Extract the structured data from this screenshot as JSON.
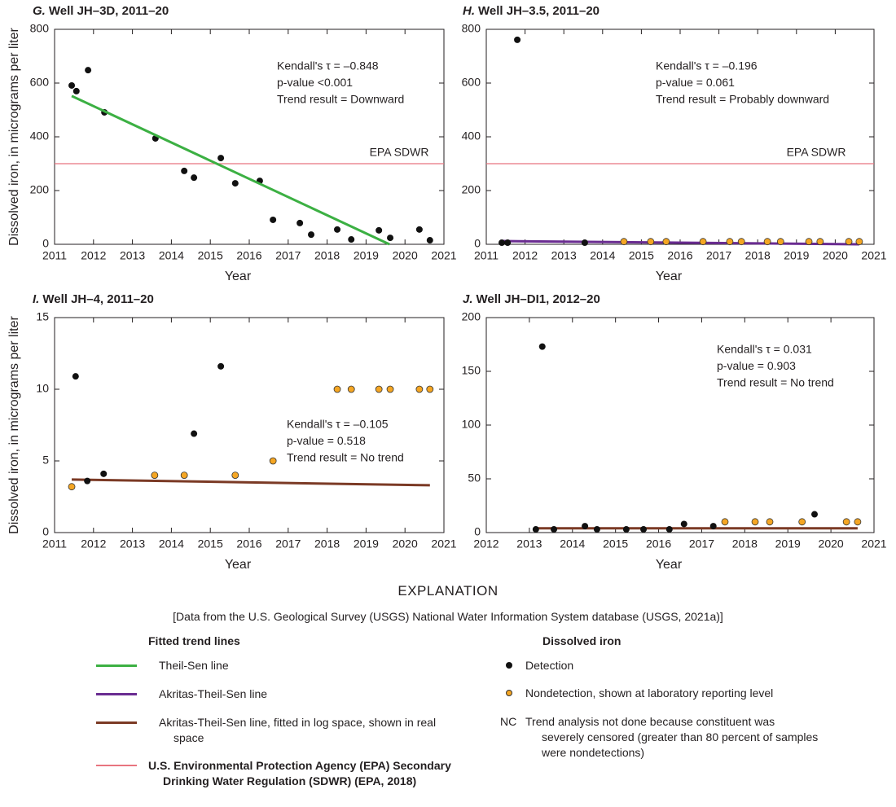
{
  "chart_data": [
    {
      "type": "scatter",
      "panel": "G.",
      "title": "Well JH–3D, 2011–20",
      "annotation": [
        "Kendall's τ = –0.848",
        "p-value <0.001",
        "Trend result = Downward"
      ],
      "ref_line": {
        "value": 300,
        "label": "EPA SDWR",
        "color": "#e8747f"
      },
      "xlabel": "Year",
      "ylabel": "Dissolved iron, in micrograms per liter",
      "xlim": [
        2011,
        2021
      ],
      "xticks": [
        2011,
        2012,
        2013,
        2014,
        2015,
        2016,
        2017,
        2018,
        2019,
        2020,
        2021
      ],
      "ylim": [
        0,
        800
      ],
      "yticks": [
        0,
        200,
        400,
        600,
        800
      ],
      "series": [
        {
          "marker": "dot",
          "color": "#111111",
          "x": [
            2011.44,
            2011.56,
            2011.86,
            2012.28,
            2013.59,
            2014.33,
            2014.58,
            2015.27,
            2015.64,
            2016.27,
            2016.61,
            2017.3,
            2017.59,
            2018.26,
            2018.62,
            2019.33,
            2019.62,
            2020.37,
            2020.64
          ],
          "values": [
            591,
            570,
            648,
            491,
            394,
            273,
            248,
            321,
            227,
            236,
            91,
            79,
            36,
            55,
            18,
            52,
            24,
            55,
            15
          ]
        },
        {
          "marker": "line",
          "color": "#3cb043",
          "x": [
            2011.44,
            2019.6
          ],
          "values": [
            552,
            0
          ]
        }
      ]
    },
    {
      "type": "scatter",
      "panel": "H.",
      "title": "Well JH–3.5, 2011–20",
      "annotation": [
        "Kendall's τ = –0.196",
        "p-value = 0.061",
        "Trend result = Probably downward"
      ],
      "ref_line": {
        "value": 300,
        "label": "EPA SDWR",
        "color": "#e8747f"
      },
      "xlabel": "Year",
      "xlim": [
        2011,
        2021
      ],
      "xticks": [
        2011,
        2012,
        2013,
        2014,
        2015,
        2016,
        2017,
        2018,
        2019,
        2020,
        2021
      ],
      "ylim": [
        0,
        800
      ],
      "yticks": [
        0,
        200,
        400,
        600,
        800
      ],
      "series": [
        {
          "marker": "line",
          "color": "#6a2c91",
          "x": [
            2011.4,
            2020.62
          ],
          "values": [
            12,
            0
          ]
        },
        {
          "marker": "dot",
          "color": "#111111",
          "x": [
            2011.4,
            2011.55,
            2011.8,
            2013.54
          ],
          "values": [
            6,
            6,
            761,
            6
          ]
        },
        {
          "marker": "open",
          "color": "#f5a623",
          "x": [
            2014.55,
            2015.24,
            2015.64,
            2016.59,
            2017.28,
            2017.58,
            2018.25,
            2018.59,
            2019.32,
            2019.61,
            2020.35,
            2020.62
          ],
          "values": [
            10,
            10,
            10,
            10,
            10,
            10,
            10,
            10,
            10,
            10,
            10,
            10
          ]
        }
      ]
    },
    {
      "type": "scatter",
      "panel": "I.",
      "title": "Well JH–4, 2011–20",
      "annotation": [
        "Kendall's τ = –0.105",
        "p-value = 0.518",
        "Trend result = No trend"
      ],
      "xlabel": "Year",
      "ylabel": "Dissolved iron, in micrograms per liter",
      "xlim": [
        2011,
        2021
      ],
      "xticks": [
        2011,
        2012,
        2013,
        2014,
        2015,
        2016,
        2017,
        2018,
        2019,
        2020,
        2021
      ],
      "ylim": [
        0,
        15
      ],
      "yticks": [
        0,
        5,
        10,
        15
      ],
      "series": [
        {
          "marker": "line",
          "color": "#7b3a25",
          "x": [
            2011.44,
            2020.64
          ],
          "values": [
            3.7,
            3.3
          ]
        },
        {
          "marker": "dot",
          "color": "#111111",
          "x": [
            2011.54,
            2011.84,
            2012.26,
            2014.58,
            2015.27
          ],
          "values": [
            10.9,
            3.6,
            4.1,
            6.9,
            11.6
          ]
        },
        {
          "marker": "open",
          "color": "#f5a623",
          "x": [
            2011.44,
            2013.57,
            2014.33,
            2015.64,
            2016.61,
            2018.26,
            2018.62,
            2019.33,
            2019.62,
            2020.37,
            2020.64
          ],
          "values": [
            3.2,
            4,
            4,
            4,
            5,
            10,
            10,
            10,
            10,
            10,
            10
          ]
        }
      ]
    },
    {
      "type": "scatter",
      "panel": "J.",
      "title": "Well JH–DI1, 2012–20",
      "annotation": [
        "Kendall's τ = 0.031",
        "p-value = 0.903",
        "Trend result = No trend"
      ],
      "xlabel": "Year",
      "xlim": [
        2012,
        2021
      ],
      "xticks": [
        2012,
        2013,
        2014,
        2015,
        2016,
        2017,
        2018,
        2019,
        2020,
        2021
      ],
      "ylim": [
        0,
        200
      ],
      "yticks": [
        0,
        50,
        100,
        150,
        200
      ],
      "series": [
        {
          "marker": "line",
          "color": "#7b3a25",
          "x": [
            2013.15,
            2020.62
          ],
          "values": [
            4,
            4
          ]
        },
        {
          "marker": "dot",
          "color": "#111111",
          "x": [
            2013.15,
            2013.3,
            2013.57,
            2014.29,
            2014.57,
            2015.25,
            2015.65,
            2016.25,
            2016.59,
            2017.27,
            2019.62
          ],
          "values": [
            3,
            173,
            3,
            6,
            3,
            3,
            3,
            3,
            8,
            6,
            17
          ]
        },
        {
          "marker": "open",
          "color": "#f5a623",
          "x": [
            2017.54,
            2018.24,
            2018.58,
            2019.33,
            2020.36,
            2020.62
          ],
          "values": [
            10,
            10,
            10,
            10,
            10,
            10
          ]
        }
      ]
    }
  ],
  "explanation": {
    "title": "EXPLANATION",
    "note": "[Data from the U.S. Geological Survey (USGS) National Water Information System database (USGS, 2021a)]",
    "trend_lines": {
      "heading": "Fitted trend lines",
      "items": [
        {
          "label": "Theil-Sen line",
          "color": "#3cb043"
        },
        {
          "label": "Akritas-Theil-Sen line",
          "color": "#6a2c91"
        },
        {
          "label": "Akritas-Theil-Sen line, fitted in log space, shown in real space",
          "color": "#7b3a25"
        },
        {
          "label": "U.S. Environmental Protection Agency (EPA) Secondary Drinking Water Regulation (SDWR) (EPA, 2018)",
          "color": "#e8747f"
        }
      ]
    },
    "iron": {
      "heading": "Dissolved iron",
      "items": [
        {
          "label": "Detection",
          "marker": "dot",
          "color": "#111111"
        },
        {
          "label": "Nondetection, shown at laboratory reporting level",
          "marker": "open",
          "color": "#f5a623"
        }
      ],
      "nc": {
        "symbol": "NC",
        "label": "Trend analysis not done because constituent was severely censored (greater than 80 percent of samples were nondetections)"
      }
    }
  }
}
